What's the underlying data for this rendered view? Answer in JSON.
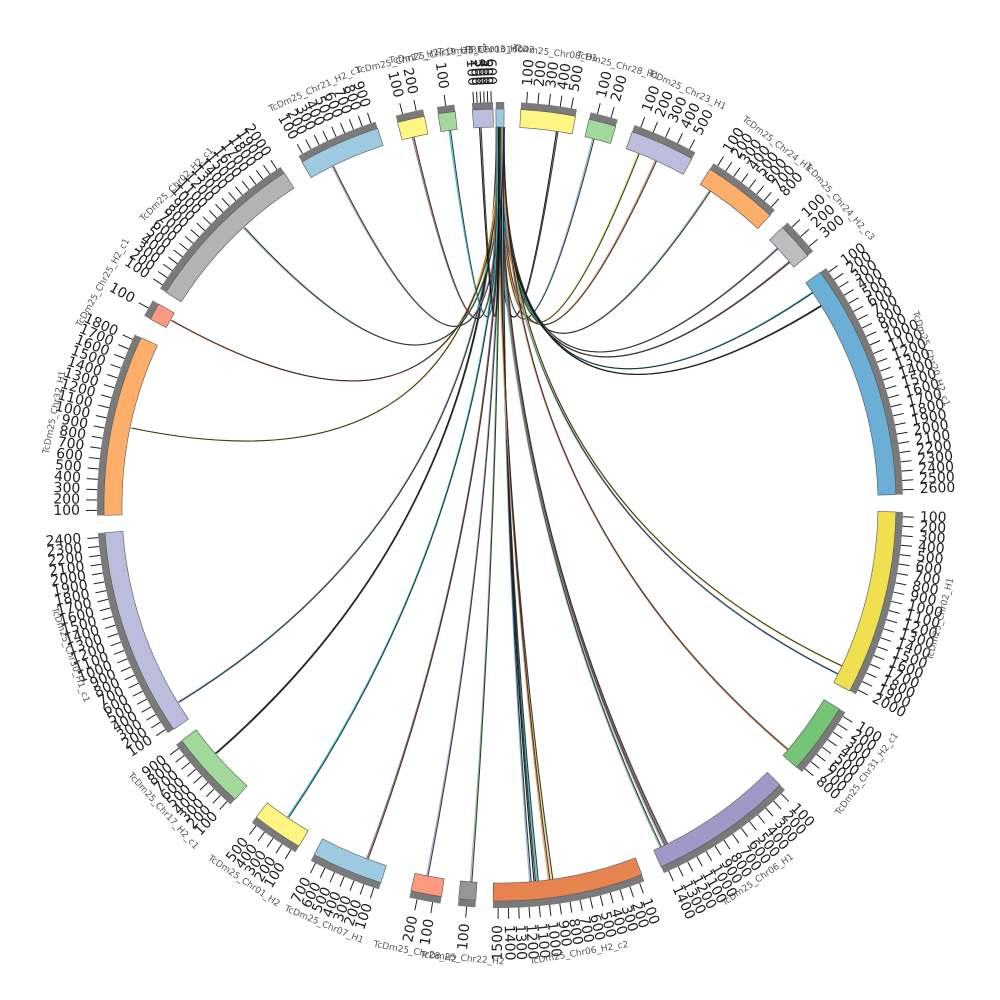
{
  "diagram": {
    "type": "circos",
    "segments": [
      {
        "name": "PREC01016042",
        "color": "#9ecae1",
        "ticks": []
      },
      {
        "name": "TcDm25_Chr08_H1",
        "color": "#fff582",
        "ticks": [
          "100",
          "200",
          "300",
          "400",
          "500"
        ]
      },
      {
        "name": "TcDm25_Chr28_H1",
        "color": "#a1d99b",
        "ticks": [
          "100",
          "200"
        ]
      },
      {
        "name": "TcDm25_Chr23_H1",
        "color": "#bcbddc",
        "ticks": [
          "100",
          "200",
          "300",
          "400",
          "500"
        ]
      },
      {
        "name": "TcDm25_Chr24_H1",
        "color": "#fdae6b",
        "ticks": [
          "100",
          "200",
          "300",
          "400",
          "500",
          "600",
          "700",
          "800"
        ]
      },
      {
        "name": "TcDm25_Chr24_H2_c3",
        "color": "#bdbdbd",
        "ticks": [
          "100",
          "200",
          "300"
        ]
      },
      {
        "name": "TcDm25_Chr20_H2_c1",
        "color": "#6baed6",
        "ticks": [
          "100",
          "200",
          "300",
          "400",
          "500",
          "600",
          "700",
          "800",
          "900",
          "1000",
          "1100",
          "1200",
          "1300",
          "1400",
          "1500",
          "1600",
          "1700",
          "1800",
          "1900",
          "2000",
          "2100",
          "2200",
          "2300",
          "2400",
          "2500",
          "2600"
        ]
      },
      {
        "name": "TcDm25_Chr02_H1",
        "color": "#f0e050",
        "ticks": [
          "100",
          "200",
          "300",
          "400",
          "500",
          "600",
          "700",
          "800",
          "900",
          "1000",
          "1100",
          "1200",
          "1300",
          "1400",
          "1500",
          "1600",
          "1700",
          "1800",
          "1900",
          "2000"
        ]
      },
      {
        "name": "TcDm25_Chr31_H2_c1",
        "color": "#74c476",
        "ticks": [
          "100",
          "200",
          "300",
          "400",
          "500",
          "600",
          "700",
          "800"
        ]
      },
      {
        "name": "TcDm25_Chr06_H1",
        "color": "#9e9ac8",
        "ticks": [
          "100",
          "200",
          "300",
          "400",
          "500",
          "600",
          "700",
          "800",
          "900",
          "1000",
          "1100",
          "1200",
          "1300",
          "1400"
        ]
      },
      {
        "name": "TcDm25_Chr06_H2_c2",
        "color": "#e6834f",
        "ticks": [
          "100",
          "200",
          "300",
          "400",
          "500",
          "600",
          "700",
          "800",
          "900",
          "1000",
          "1100",
          "1200",
          "1300",
          "1400",
          "1500"
        ]
      },
      {
        "name": "TcDm25_Chr22_H2",
        "color": "#969696",
        "ticks": [
          "100"
        ]
      },
      {
        "name": "TcDm25_Chr28_H2",
        "color": "#fb9a80",
        "ticks": [
          "100",
          "200"
        ]
      },
      {
        "name": "TcDm25_Chr07_H1",
        "color": "#9ecae1",
        "ticks": [
          "100",
          "200",
          "300",
          "400",
          "500",
          "600",
          "700"
        ]
      },
      {
        "name": "TcDm25_Chr01_H2",
        "color": "#fff582",
        "ticks": [
          "100",
          "200",
          "300",
          "400",
          "500"
        ]
      },
      {
        "name": "TcDm25_Chr17_H2_c1",
        "color": "#a1d99b",
        "ticks": [
          "100",
          "200",
          "300",
          "400",
          "500",
          "600",
          "700",
          "800",
          "900"
        ]
      },
      {
        "name": "TcDm25_Chr30_H1_c1",
        "color": "#bcbddc",
        "ticks": [
          "100",
          "200",
          "300",
          "400",
          "500",
          "600",
          "700",
          "800",
          "900",
          "1000",
          "1100",
          "1200",
          "1300",
          "1400",
          "1500",
          "1600",
          "1700",
          "1800",
          "1900",
          "2000",
          "2100",
          "2200",
          "2300",
          "2400"
        ]
      },
      {
        "name": "TcDm25_Chr32_H1",
        "color": "#fdae6b",
        "ticks": [
          "100",
          "200",
          "300",
          "400",
          "500",
          "600",
          "700",
          "800",
          "900",
          "1000",
          "1100",
          "1200",
          "1300",
          "1400",
          "1500",
          "1600",
          "1700",
          "1800"
        ]
      },
      {
        "name": "TcDm25_Chr25_H2_c1",
        "color": "#fb9a80",
        "ticks": [
          "100"
        ]
      },
      {
        "name": "TcDm25_Chr02_H2_c1",
        "color": "#b3b3b3",
        "ticks": [
          "100",
          "200",
          "300",
          "400",
          "500",
          "600",
          "700",
          "800",
          "900",
          "1000",
          "1100",
          "1200",
          "1300",
          "1400",
          "1500",
          "1600",
          "1700",
          "1800",
          "1900",
          "2000"
        ]
      },
      {
        "name": "TcDm25_Chr21_H2_c1",
        "color": "#9ecae1",
        "ticks": [
          "100",
          "200",
          "300",
          "400",
          "500",
          "600",
          "700",
          "800",
          "900"
        ]
      },
      {
        "name": "TcDm25_Chr27_H2",
        "color": "#fff582",
        "ticks": [
          "100",
          "200"
        ]
      },
      {
        "name": "TcDm25_Chr19_H2_c1",
        "color": "#a1d99b",
        "ticks": [
          "100"
        ]
      },
      {
        "name": "TcDm25_Chr03_H2",
        "color": "#bcbddc",
        "ticks": [
          "100",
          "200",
          "300",
          "400",
          "500",
          "600"
        ]
      }
    ],
    "link_colors": [
      "#000000",
      "#6baed6",
      "#f0e050",
      "#e6834f",
      "#74c476",
      "#9e9ac8",
      "#8c564b",
      "#17becf"
    ]
  }
}
